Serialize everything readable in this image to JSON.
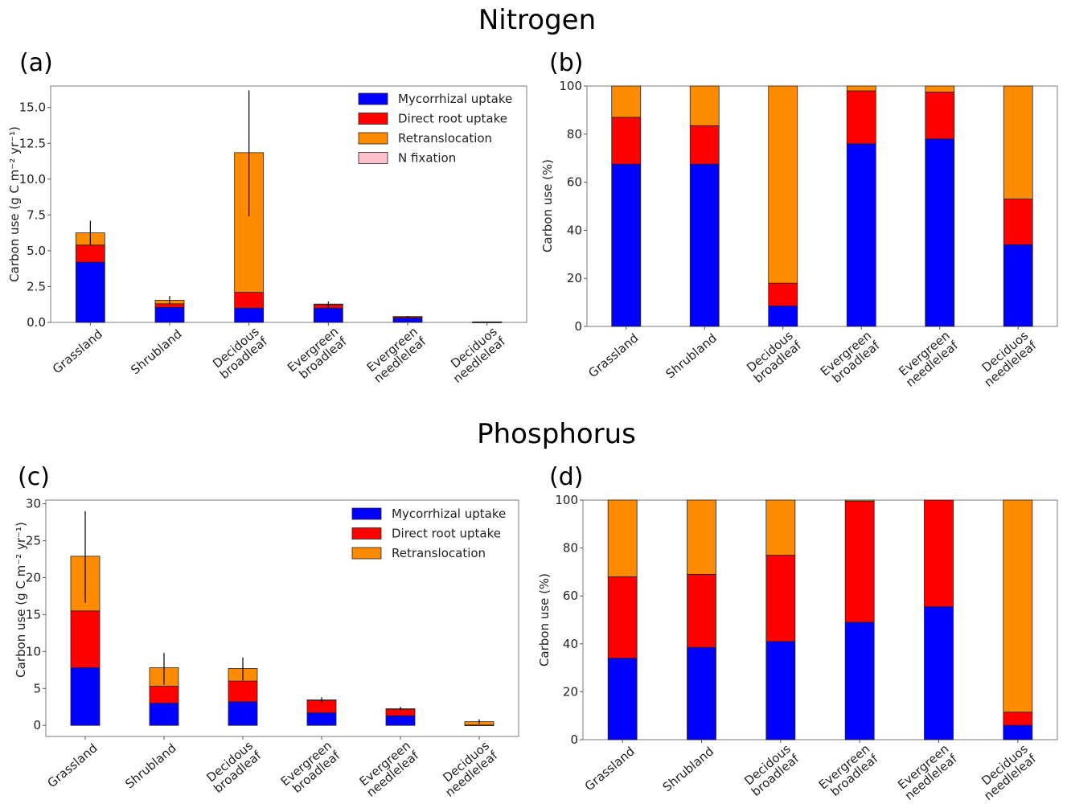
{
  "titles": {
    "top": "Nitrogen",
    "bottom": "Phosphorus"
  },
  "colors": {
    "mycorrhizal": "#0000ff",
    "direct": "#ff0000",
    "retrans": "#ff8c00",
    "fixation": "#ffc0cb"
  },
  "chart_data": [
    {
      "panel": "(a)",
      "type": "bar",
      "stacked": true,
      "categories": [
        [
          "Grassland"
        ],
        [
          "Shrubland"
        ],
        [
          "Decidous",
          "broadleaf"
        ],
        [
          "Evergreen",
          "broadleaf"
        ],
        [
          "Evergreen",
          "needleleaf"
        ],
        [
          "Deciduos",
          "needleleaf"
        ]
      ],
      "ylabel": "Carbon use (g C m⁻² yr⁻¹)",
      "ylim": [
        0,
        16.5
      ],
      "yticks": [
        0.0,
        2.5,
        5.0,
        7.5,
        10.0,
        12.5,
        15.0
      ],
      "ytick_labels": [
        "0.0",
        "2.5",
        "5.0",
        "7.5",
        "10.0",
        "12.5",
        "15.0"
      ],
      "legend": "top-right",
      "series": [
        {
          "name": "Mycorrhizal uptake",
          "color": "#0000ff",
          "values": [
            4.2,
            1.05,
            1.0,
            1.0,
            0.3,
            0.01
          ]
        },
        {
          "name": "Direct root uptake",
          "color": "#ff0000",
          "values": [
            1.2,
            0.25,
            1.1,
            0.25,
            0.1,
            0.01
          ]
        },
        {
          "name": "Retranslocation",
          "color": "#ff8c00",
          "values": [
            0.85,
            0.25,
            9.75,
            0.03,
            0.01,
            0.02
          ]
        },
        {
          "name": "N fixation",
          "color": "#ffc0cb",
          "values": [
            0,
            0,
            0,
            0,
            0,
            0
          ]
        }
      ],
      "error_low": [
        5.4,
        1.3,
        7.4,
        1.05,
        0.35,
        0.04
      ],
      "error_high": [
        7.1,
        1.85,
        16.2,
        1.45,
        0.45,
        0.06
      ]
    },
    {
      "panel": "(b)",
      "type": "bar",
      "stacked": true,
      "categories": [
        [
          "Grassland"
        ],
        [
          "Shrubland"
        ],
        [
          "Decidous",
          "broadleaf"
        ],
        [
          "Evergreen",
          "broadleaf"
        ],
        [
          "Evergreen",
          "needleleaf"
        ],
        [
          "Deciduos",
          "needleleaf"
        ]
      ],
      "ylabel": "Carbon use (%)",
      "ylim": [
        0,
        100
      ],
      "yticks": [
        0,
        20,
        40,
        60,
        80,
        100
      ],
      "ytick_labels": [
        "0",
        "20",
        "40",
        "60",
        "80",
        "100"
      ],
      "series": [
        {
          "name": "Mycorrhizal uptake",
          "color": "#0000ff",
          "values": [
            67.5,
            67.5,
            8.5,
            76.0,
            78.0,
            34.0
          ]
        },
        {
          "name": "Direct root uptake",
          "color": "#ff0000",
          "values": [
            19.5,
            16.0,
            9.5,
            22.0,
            19.5,
            19.0
          ]
        },
        {
          "name": "Retranslocation",
          "color": "#ff8c00",
          "values": [
            13.0,
            16.5,
            82.0,
            2.0,
            2.5,
            47.0
          ]
        }
      ]
    },
    {
      "panel": "(c)",
      "type": "bar",
      "stacked": true,
      "categories": [
        [
          "Grassland"
        ],
        [
          "Shrubland"
        ],
        [
          "Decidous",
          "broadleaf"
        ],
        [
          "Evergreen",
          "broadleaf"
        ],
        [
          "Evergreen",
          "needleleaf"
        ],
        [
          "Deciduos",
          "needleleaf"
        ]
      ],
      "ylabel": "Carbon use (g C m⁻² yr⁻¹)",
      "ylim": [
        -1.5,
        30.5
      ],
      "yticks": [
        0,
        5,
        10,
        15,
        20,
        25,
        30
      ],
      "ytick_labels": [
        "0",
        "5",
        "10",
        "15",
        "20",
        "25",
        "30"
      ],
      "legend": "top-right",
      "series": [
        {
          "name": "Mycorrhizal uptake",
          "color": "#0000ff",
          "values": [
            7.8,
            3.0,
            3.2,
            1.7,
            1.3,
            0.03
          ]
        },
        {
          "name": "Direct root uptake",
          "color": "#ff0000",
          "values": [
            7.7,
            2.3,
            2.8,
            1.7,
            0.9,
            0.02
          ]
        },
        {
          "name": "Retranslocation",
          "color": "#ff8c00",
          "values": [
            7.4,
            2.5,
            1.7,
            0.05,
            0.05,
            0.45
          ]
        }
      ],
      "error_low": [
        16.6,
        5.5,
        6.1,
        3.0,
        2.0,
        0.2
      ],
      "error_high": [
        29.0,
        9.8,
        9.2,
        3.8,
        2.5,
        0.8
      ]
    },
    {
      "panel": "(d)",
      "type": "bar",
      "stacked": true,
      "categories": [
        [
          "Grassland"
        ],
        [
          "Shrubland"
        ],
        [
          "Decidous",
          "broadleaf"
        ],
        [
          "Evergreen",
          "broadleaf"
        ],
        [
          "Evergreen",
          "needleleaf"
        ],
        [
          "Deciduos",
          "needleleaf"
        ]
      ],
      "ylabel": "Carbon use (%)",
      "ylim": [
        0,
        100
      ],
      "yticks": [
        0,
        20,
        40,
        60,
        80,
        100
      ],
      "ytick_labels": [
        "0",
        "20",
        "40",
        "60",
        "80",
        "100"
      ],
      "series": [
        {
          "name": "Mycorrhizal uptake",
          "color": "#0000ff",
          "values": [
            34.0,
            38.5,
            41.0,
            49.0,
            55.5,
            6.0
          ]
        },
        {
          "name": "Direct root uptake",
          "color": "#ff0000",
          "values": [
            34.0,
            30.5,
            36.0,
            50.5,
            44.5,
            5.5
          ]
        },
        {
          "name": "Retranslocation",
          "color": "#ff8c00",
          "values": [
            32.0,
            31.0,
            23.0,
            0.5,
            0.0,
            88.5
          ]
        }
      ]
    }
  ]
}
